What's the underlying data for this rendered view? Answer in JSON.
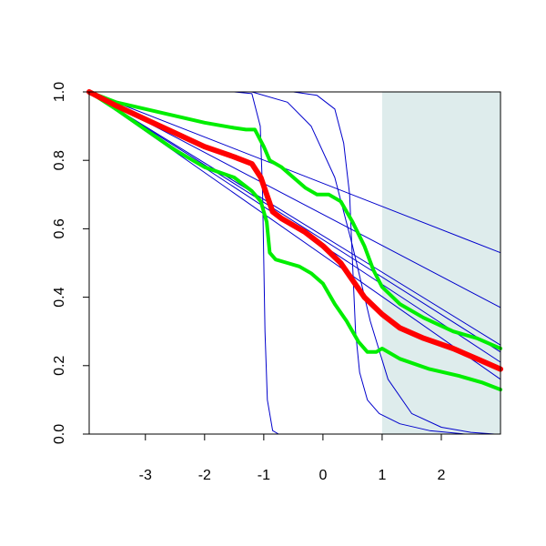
{
  "chart_data": {
    "type": "line",
    "title": "",
    "xlabel": "",
    "ylabel": "",
    "xlim": [
      -3.95,
      3.0
    ],
    "ylim": [
      0.0,
      1.0
    ],
    "x_ticks": [
      -3,
      -2,
      -1,
      0,
      1,
      2
    ],
    "x_tick_labels": [
      "-3",
      "-2",
      "-1",
      "0",
      "1",
      "2"
    ],
    "y_ticks": [
      0.0,
      0.2,
      0.4,
      0.6,
      0.8,
      1.0
    ],
    "y_tick_labels": [
      "0.0",
      "0.2",
      "0.4",
      "0.6",
      "0.8",
      "1.0"
    ],
    "shaded_region": {
      "x": [
        1.0,
        3.0
      ],
      "color": "#deecec"
    },
    "grid": false,
    "legend": "none",
    "colors": {
      "thin_lines": "#0000cc",
      "mean": "#ff0000",
      "bounds": "#00ee00"
    },
    "series": [
      {
        "role": "thin",
        "x": [
          -3.95,
          3.0
        ],
        "y": [
          1.0,
          0.53
        ]
      },
      {
        "role": "thin",
        "x": [
          -3.95,
          3.0
        ],
        "y": [
          1.0,
          0.37
        ]
      },
      {
        "role": "thin",
        "x": [
          -3.95,
          3.0
        ],
        "y": [
          1.0,
          0.26
        ]
      },
      {
        "role": "thin",
        "x": [
          -3.95,
          3.0
        ],
        "y": [
          1.0,
          0.24
        ]
      },
      {
        "role": "thin",
        "x": [
          -3.95,
          3.0
        ],
        "y": [
          1.0,
          0.21
        ]
      },
      {
        "role": "thin",
        "x": [
          -3.95,
          3.0
        ],
        "y": [
          1.0,
          0.16
        ]
      },
      {
        "role": "thin",
        "x": [
          -3.95,
          -1.5,
          -1.2,
          -1.06,
          -1.02,
          -1.0,
          -0.98,
          -0.94,
          -0.85,
          -0.75
        ],
        "y": [
          1.0,
          1.0,
          0.995,
          0.9,
          0.7,
          0.5,
          0.3,
          0.1,
          0.01,
          0.0
        ]
      },
      {
        "role": "thin",
        "x": [
          -3.95,
          -1.2,
          -0.6,
          -0.2,
          0.2,
          0.5,
          0.8,
          1.1,
          1.5,
          2.0,
          2.5,
          2.9
        ],
        "y": [
          1.0,
          1.0,
          0.97,
          0.9,
          0.75,
          0.55,
          0.33,
          0.16,
          0.06,
          0.02,
          0.005,
          0.0
        ]
      },
      {
        "role": "thin",
        "x": [
          -3.95,
          -0.5,
          -0.1,
          0.2,
          0.35,
          0.45,
          0.5,
          0.55,
          0.62,
          0.75,
          0.95,
          1.3,
          1.8,
          2.4,
          3.0
        ],
        "y": [
          1.0,
          1.0,
          0.99,
          0.95,
          0.85,
          0.7,
          0.5,
          0.3,
          0.18,
          0.1,
          0.06,
          0.03,
          0.01,
          0.0,
          0.0
        ]
      },
      {
        "role": "mean",
        "x": [
          -3.95,
          -3.5,
          -3.0,
          -2.5,
          -2.0,
          -1.5,
          -1.2,
          -1.05,
          -0.95,
          -0.85,
          -0.7,
          -0.5,
          -0.3,
          0.0,
          0.3,
          0.5,
          0.7,
          1.0,
          1.3,
          1.7,
          2.2,
          2.6,
          3.0
        ],
        "y": [
          1.0,
          0.96,
          0.92,
          0.88,
          0.84,
          0.81,
          0.79,
          0.75,
          0.7,
          0.65,
          0.63,
          0.61,
          0.59,
          0.55,
          0.5,
          0.45,
          0.4,
          0.35,
          0.31,
          0.28,
          0.25,
          0.22,
          0.19
        ]
      },
      {
        "role": "upper",
        "x": [
          -3.95,
          -3.5,
          -3.0,
          -2.5,
          -2.0,
          -1.5,
          -1.3,
          -1.15,
          -1.0,
          -0.9,
          -0.7,
          -0.5,
          -0.3,
          -0.1,
          0.1,
          0.3,
          0.5,
          0.7,
          0.85,
          1.0,
          1.3,
          1.7,
          2.2,
          2.6,
          3.0
        ],
        "y": [
          1.0,
          0.97,
          0.95,
          0.93,
          0.91,
          0.895,
          0.89,
          0.89,
          0.84,
          0.8,
          0.78,
          0.75,
          0.72,
          0.7,
          0.7,
          0.68,
          0.62,
          0.55,
          0.48,
          0.43,
          0.38,
          0.34,
          0.3,
          0.28,
          0.25
        ]
      },
      {
        "role": "lower",
        "x": [
          -3.95,
          -3.5,
          -3.0,
          -2.5,
          -2.0,
          -1.5,
          -1.2,
          -1.05,
          -0.95,
          -0.9,
          -0.8,
          -0.6,
          -0.4,
          -0.2,
          0.0,
          0.2,
          0.4,
          0.6,
          0.75,
          0.9,
          1.0,
          1.3,
          1.8,
          2.3,
          2.7,
          3.0
        ],
        "y": [
          1.0,
          0.95,
          0.89,
          0.83,
          0.78,
          0.75,
          0.71,
          0.68,
          0.62,
          0.53,
          0.51,
          0.5,
          0.49,
          0.47,
          0.44,
          0.38,
          0.33,
          0.27,
          0.24,
          0.24,
          0.25,
          0.22,
          0.19,
          0.17,
          0.15,
          0.13
        ]
      }
    ]
  }
}
